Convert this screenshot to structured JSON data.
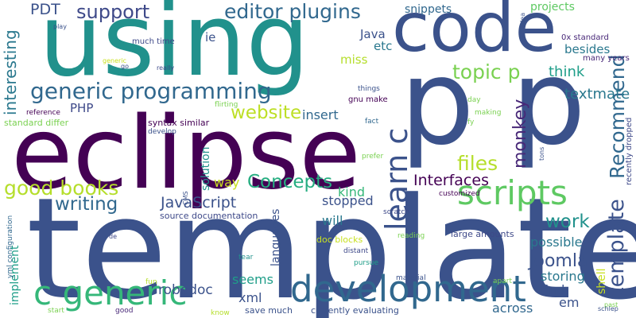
{
  "words": [
    {
      "text": "template",
      "color": "#3b528b"
    },
    {
      "text": "eclipse",
      "color": "#440154"
    },
    {
      "text": "using",
      "color": "#21918c"
    },
    {
      "text": "p",
      "color": "#3b528b"
    },
    {
      "text": "p",
      "color": "#3b528b"
    },
    {
      "text": "code",
      "color": "#3b528b"
    },
    {
      "text": "development",
      "color": "#31688e"
    },
    {
      "text": "c generic",
      "color": "#35b779"
    },
    {
      "text": "scripts",
      "color": "#5ec962"
    },
    {
      "text": "generic programming",
      "color": "#31688e"
    },
    {
      "text": "learn c",
      "color": "#3b528b"
    },
    {
      "text": "editor plugins",
      "color": "#31688e"
    },
    {
      "text": "template",
      "color": "#3b528b"
    },
    {
      "text": "Recommend",
      "color": "#31688e"
    },
    {
      "text": "good books",
      "color": "#b5de2b"
    },
    {
      "text": "files",
      "color": "#b5de2b"
    },
    {
      "text": "topic p",
      "color": "#7ad151"
    },
    {
      "text": "support",
      "color": "#3e4989"
    },
    {
      "text": "website",
      "color": "#bddf26"
    },
    {
      "text": "Concepts",
      "color": "#26ad81"
    },
    {
      "text": "work",
      "color": "#21918c"
    },
    {
      "text": "writing",
      "color": "#31688e"
    },
    {
      "text": "monkey",
      "color": "#482878"
    },
    {
      "text": "Joomla",
      "color": "#3b528b"
    },
    {
      "text": "interesting",
      "color": "#2a788e"
    },
    {
      "text": "JavaScript",
      "color": "#3b528b"
    },
    {
      "text": "PDT",
      "color": "#3b528b"
    },
    {
      "text": "Interfaces",
      "color": "#440154"
    },
    {
      "text": "textmate",
      "color": "#2a788e"
    },
    {
      "text": "think",
      "color": "#1f9e89"
    },
    {
      "text": "robodoc",
      "color": "#3b528b"
    },
    {
      "text": "projects",
      "color": "#5ec962"
    },
    {
      "text": "snippets",
      "color": "#31688e"
    },
    {
      "text": "languages",
      "color": "#3b528b"
    },
    {
      "text": "implement",
      "color": "#1f9e89"
    },
    {
      "text": "insert",
      "color": "#31688e"
    },
    {
      "text": "solution",
      "color": "#21918c"
    },
    {
      "text": "storing",
      "color": "#2a788e"
    },
    {
      "text": "possible",
      "color": "#2a788e"
    },
    {
      "text": "stopped",
      "color": "#3b528b"
    },
    {
      "text": "across",
      "color": "#31688e"
    },
    {
      "text": "way",
      "color": "#c8e020"
    },
    {
      "text": "kind",
      "color": "#35b779"
    },
    {
      "text": "will",
      "color": "#2a788e"
    },
    {
      "text": "seems",
      "color": "#1f9e89"
    },
    {
      "text": "find",
      "color": "#3b528b"
    },
    {
      "text": "xml",
      "color": "#3b528b"
    },
    {
      "text": "em",
      "color": "#3b528b"
    },
    {
      "text": "shell",
      "color": "#c8e020"
    },
    {
      "text": "PHP",
      "color": "#3e4989"
    },
    {
      "text": "etc",
      "color": "#2a788e"
    },
    {
      "text": "besides",
      "color": "#2a788e"
    },
    {
      "text": "miss",
      "color": "#b5de2b"
    },
    {
      "text": "Java",
      "color": "#3b528b"
    },
    {
      "text": "ie",
      "color": "#3b528b"
    },
    {
      "text": "doc blocks",
      "color": "#c8e020"
    },
    {
      "text": "large amounts",
      "color": "#3e4989"
    },
    {
      "text": "source documentation",
      "color": "#3e4989"
    },
    {
      "text": "save much",
      "color": "#3b528b"
    },
    {
      "text": "currently evaluating",
      "color": "#3b528b"
    },
    {
      "text": "syntax similar",
      "color": "#440154"
    },
    {
      "text": "standard differ",
      "color": "#7ad151"
    },
    {
      "text": "gnu make",
      "color": "#440154"
    },
    {
      "text": "much time",
      "color": "#3e4989"
    },
    {
      "text": "many years",
      "color": "#482878"
    },
    {
      "text": "0x standard",
      "color": "#482878"
    },
    {
      "text": "recently dropped",
      "color": "#3e4989"
    },
    {
      "text": "yml configuration",
      "color": "#31688e"
    },
    {
      "text": "reference",
      "color": "#440154"
    },
    {
      "text": "develop",
      "color": "#3b528b"
    },
    {
      "text": "flirting",
      "color": "#7ad151"
    },
    {
      "text": "things",
      "color": "#3b528b"
    },
    {
      "text": "making",
      "color": "#7ad151"
    },
    {
      "text": "scratch",
      "color": "#3e4989"
    },
    {
      "text": "reading",
      "color": "#7ad151"
    },
    {
      "text": "customized",
      "color": "#440154"
    },
    {
      "text": "material",
      "color": "#3b528b"
    },
    {
      "text": "pursue",
      "color": "#1f9e89"
    },
    {
      "text": "distant",
      "color": "#3e4989"
    },
    {
      "text": "tear",
      "color": "#21918c"
    },
    {
      "text": "apart",
      "color": "#7ad151"
    },
    {
      "text": "fun",
      "color": "#b5de2b"
    },
    {
      "text": "know",
      "color": "#b5de2b"
    },
    {
      "text": "start",
      "color": "#7ad151"
    },
    {
      "text": "good",
      "color": "#482878"
    },
    {
      "text": "prefer",
      "color": "#7ad151"
    },
    {
      "text": "fact",
      "color": "#31688e"
    },
    {
      "text": "day",
      "color": "#7ad151"
    },
    {
      "text": "fy",
      "color": "#7ad151"
    },
    {
      "text": "idea",
      "color": "#3b528b"
    },
    {
      "text": "tons",
      "color": "#3b528b"
    },
    {
      "text": "play",
      "color": "#3b528b"
    },
    {
      "text": "generic",
      "color": "#c8e020"
    },
    {
      "text": "go",
      "color": "#3b528b"
    },
    {
      "text": "really",
      "color": "#3e4989"
    },
    {
      "text": "CMS",
      "color": "#3b528b"
    },
    {
      "text": "de",
      "color": "#3e4989"
    },
    {
      "text": "past",
      "color": "#7ad151"
    },
    {
      "text": "schlep",
      "color": "#3b528b"
    }
  ]
}
